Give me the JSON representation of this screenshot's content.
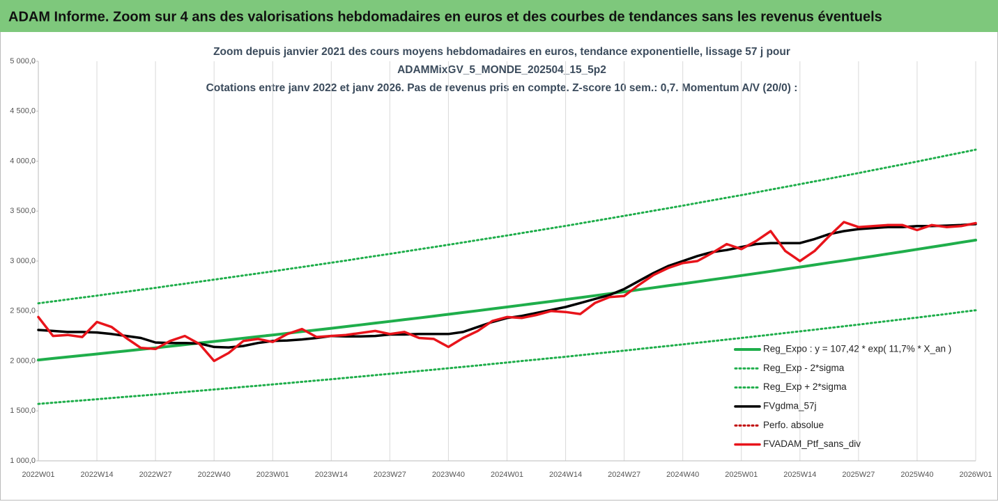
{
  "header": {
    "title": "ADAM Informe. Zoom sur 4 ans des valorisations hebdomadaires en euros et des courbes de tendances sans les revenus éventuels"
  },
  "chart_data": {
    "type": "line",
    "title": [
      "Zoom depuis janvier 2021 des cours moyens hebdomadaires  en euros, tendance exponentielle, lissage 57 j pour",
      "ADAMMixGV_5_MONDE_202504_15_5p2",
      "Cotations  entre janv 2022 et janv 2026. Pas de revenus pris en compte. Z-score 10 sem.: 0,7. Momentum A/V (20/0) :"
    ],
    "categories": [
      "2022W01",
      null,
      null,
      null,
      "2022W14",
      null,
      null,
      null,
      "2022W27",
      null,
      null,
      null,
      "2022W40",
      null,
      null,
      null,
      "2023W01",
      null,
      null,
      null,
      "2023W14",
      null,
      null,
      null,
      "2023W27",
      null,
      null,
      null,
      "2023W40",
      null,
      null,
      null,
      "2024W01",
      null,
      null,
      null,
      "2024W14",
      null,
      null,
      null,
      "2024W27",
      null,
      null,
      null,
      "2024W40",
      null,
      null,
      null,
      "2025W01",
      null,
      null,
      null,
      "2025W14",
      null,
      null,
      null,
      "2025W27",
      null,
      null,
      null,
      "2025W40",
      null,
      null,
      null,
      "2026W01"
    ],
    "ylim": [
      1000,
      5000
    ],
    "yticks": [
      {
        "value": 1000,
        "label": "1 000,0"
      },
      {
        "value": 1500,
        "label": "1 500,0"
      },
      {
        "value": 2000,
        "label": "2 000,0"
      },
      {
        "value": 2500,
        "label": "2 500,0"
      },
      {
        "value": 3000,
        "label": "3 000,0"
      },
      {
        "value": 3500,
        "label": "3 500,0"
      },
      {
        "value": 4000,
        "label": "4 000,0"
      },
      {
        "value": 4500,
        "label": "4 500,0"
      },
      {
        "value": 5000,
        "label": "5 000,0"
      }
    ],
    "grid": "x",
    "legend": "right",
    "series": [
      {
        "name": "Reg_Expo : y = 107,42 * exp( 11,7% *  X_an )",
        "color": "#1fae4b",
        "style": "solid",
        "width": 4,
        "values": [
          2010,
          2025,
          2040,
          2055,
          2070,
          2085,
          2100,
          2116,
          2131,
          2147,
          2163,
          2179,
          2195,
          2211,
          2227,
          2244,
          2260,
          2277,
          2294,
          2310,
          2327,
          2344,
          2361,
          2379,
          2396,
          2414,
          2431,
          2449,
          2467,
          2485,
          2503,
          2522,
          2540,
          2559,
          2578,
          2596,
          2615,
          2634,
          2654,
          2673,
          2693,
          2713,
          2733,
          2753,
          2773,
          2793,
          2814,
          2834,
          2855,
          2876,
          2897,
          2919,
          2940,
          2962,
          2984,
          3005,
          3027,
          3049,
          3072,
          3094,
          3117,
          3140,
          3163,
          3187,
          3210
        ]
      },
      {
        "name": "Reg_Exp - 2*sigma",
        "color": "#1fae4b",
        "style": "dotted",
        "width": 3,
        "values": [
          1570,
          1582,
          1594,
          1605,
          1617,
          1629,
          1641,
          1652,
          1664,
          1677,
          1689,
          1702,
          1714,
          1727,
          1740,
          1752,
          1765,
          1778,
          1791,
          1804,
          1817,
          1831,
          1844,
          1858,
          1871,
          1885,
          1899,
          1913,
          1927,
          1941,
          1955,
          1970,
          1984,
          1999,
          2013,
          2028,
          2042,
          2057,
          2073,
          2088,
          2103,
          2119,
          2135,
          2150,
          2166,
          2182,
          2198,
          2214,
          2230,
          2247,
          2263,
          2280,
          2296,
          2313,
          2330,
          2347,
          2364,
          2382,
          2399,
          2417,
          2434,
          2452,
          2470,
          2489,
          2507
        ]
      },
      {
        "name": "Reg_Exp + 2*sigma",
        "color": "#1fae4b",
        "style": "dotted",
        "width": 3,
        "values": [
          2577,
          2596,
          2615,
          2635,
          2654,
          2674,
          2693,
          2713,
          2732,
          2753,
          2773,
          2794,
          2814,
          2835,
          2856,
          2876,
          2897,
          2919,
          2940,
          2962,
          2983,
          3005,
          3028,
          3050,
          3072,
          3095,
          3118,
          3140,
          3163,
          3186,
          3210,
          3233,
          3256,
          3280,
          3304,
          3328,
          3352,
          3377,
          3402,
          3427,
          3452,
          3478,
          3504,
          3529,
          3555,
          3581,
          3608,
          3634,
          3660,
          3687,
          3715,
          3742,
          3769,
          3797,
          3825,
          3853,
          3881,
          3910,
          3939,
          3967,
          3996,
          4026,
          4056,
          4085,
          4115
        ]
      },
      {
        "name": "FVgdma_57j",
        "color": "#000000",
        "style": "solid",
        "width": 3.5,
        "values": [
          2310,
          2300,
          2290,
          2290,
          2285,
          2270,
          2250,
          2230,
          2185,
          2180,
          2180,
          2175,
          2140,
          2135,
          2150,
          2180,
          2200,
          2205,
          2215,
          2230,
          2250,
          2245,
          2245,
          2250,
          2265,
          2265,
          2270,
          2270,
          2270,
          2290,
          2340,
          2390,
          2430,
          2450,
          2480,
          2510,
          2540,
          2580,
          2620,
          2660,
          2720,
          2800,
          2880,
          2950,
          3000,
          3050,
          3090,
          3110,
          3140,
          3170,
          3180,
          3180,
          3180,
          3220,
          3270,
          3300,
          3320,
          3330,
          3340,
          3340,
          3350,
          3350,
          3355,
          3360,
          3370
        ]
      },
      {
        "name": "Perfo. absolue",
        "color": "#c00000",
        "style": "dotted",
        "width": 3
      },
      {
        "name": "FVADAM_Ptf_sans_div",
        "color": "#e8141b",
        "style": "solid",
        "width": 3.5,
        "values": [
          2440,
          2250,
          2260,
          2240,
          2390,
          2340,
          2230,
          2130,
          2120,
          2200,
          2250,
          2170,
          2000,
          2080,
          2200,
          2220,
          2190,
          2270,
          2320,
          2240,
          2250,
          2260,
          2280,
          2300,
          2270,
          2290,
          2230,
          2220,
          2140,
          2230,
          2300,
          2400,
          2440,
          2430,
          2460,
          2500,
          2490,
          2470,
          2580,
          2640,
          2650,
          2760,
          2860,
          2930,
          2980,
          3000,
          3080,
          3170,
          3120,
          3200,
          3300,
          3100,
          3000,
          3100,
          3250,
          3390,
          3340,
          3350,
          3360,
          3360,
          3310,
          3360,
          3340,
          3350,
          3380
        ]
      }
    ]
  }
}
